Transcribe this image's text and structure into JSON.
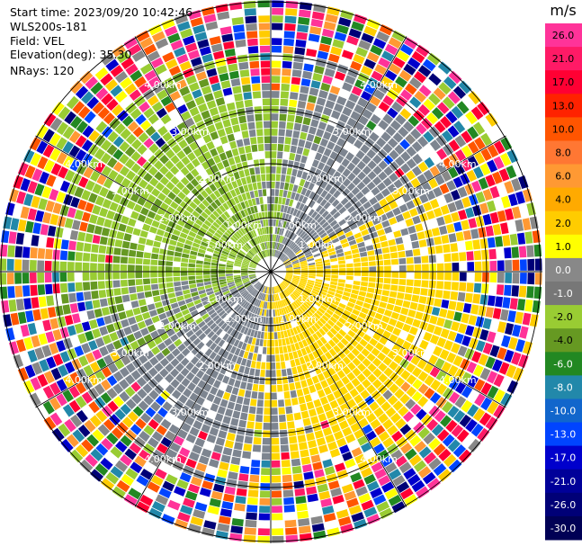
{
  "info": {
    "start_time": "Start time: 2023/09/20 10:42:46",
    "device": "WLS200s-181",
    "field": "Field: VEL",
    "elevation": "Elevation(deg): 35.30",
    "nrays": "NRays: 120"
  },
  "colorbar": {
    "unit": "m/s",
    "ticks": [
      "26.0",
      "21.0",
      "17.0",
      "13.0",
      "10.0",
      "8.0",
      "6.0",
      "4.0",
      "2.0",
      "1.0",
      "0.0",
      "-1.0",
      "-2.0",
      "-4.0",
      "-6.0",
      "-8.0",
      "-10.0",
      "-13.0",
      "-17.0",
      "-21.0",
      "-26.0",
      "-30.0"
    ],
    "colors": [
      "#ff3399",
      "#ff1a66",
      "#ff0033",
      "#ff2200",
      "#ff5500",
      "#ff7733",
      "#ff9933",
      "#ffaa00",
      "#ffcc00",
      "#ffff00",
      "#888888",
      "#777777",
      "#99cc33",
      "#669922",
      "#228822",
      "#2288aa",
      "#1166cc",
      "#0044ff",
      "#0000cc",
      "#000099",
      "#000077",
      "#000055"
    ]
  },
  "ring_labels": [
    "1.00km",
    "2.00km",
    "3.00km",
    "4.00km"
  ],
  "palettes": {
    "noise": [
      "#ff3399",
      "#ff1a66",
      "#ff0033",
      "#ff5500",
      "#ff9933",
      "#ffcc00",
      "#ffff00",
      "#0044ff",
      "#0000cc",
      "#000077",
      "#99cc33",
      "#228822",
      "#ffffff",
      "#2288aa",
      "#888888"
    ],
    "gray": "#7d8590",
    "green": "#99cc33",
    "darkgreen": "#669922",
    "yellow": "#ffd700"
  }
}
